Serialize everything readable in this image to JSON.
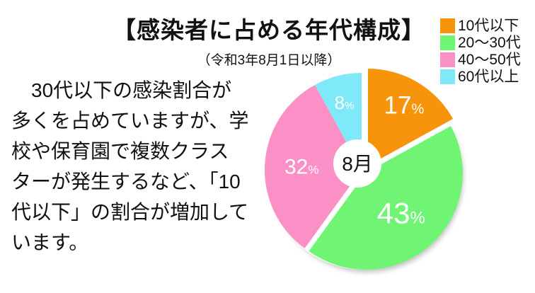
{
  "title": "【感染者に占める年代構成】",
  "subtitle": "（令和3年8月1日以降）",
  "description_lines": [
    "　30代以下の感染割合が",
    "多くを占めていますが、学",
    "校や保育園で複数クラス",
    "ターが発生するなど、「10",
    "代以下」の割合が増加して",
    "います。"
  ],
  "chart_data": {
    "type": "pie",
    "title": "【感染者に占める年代構成】",
    "subtitle": "（令和3年8月1日以降）",
    "categories": [
      "10代以下",
      "20〜30代",
      "40〜50代",
      "60代以上"
    ],
    "values": [
      17,
      43,
      32,
      8
    ],
    "unit": "%",
    "colors": [
      "#F7940B",
      "#6FF573",
      "#FA90C5",
      "#7FE9F9"
    ],
    "center_label": "8月",
    "start_angle_deg": 0,
    "direction": "clockwise",
    "donut": true,
    "legend_position": "top-right"
  }
}
